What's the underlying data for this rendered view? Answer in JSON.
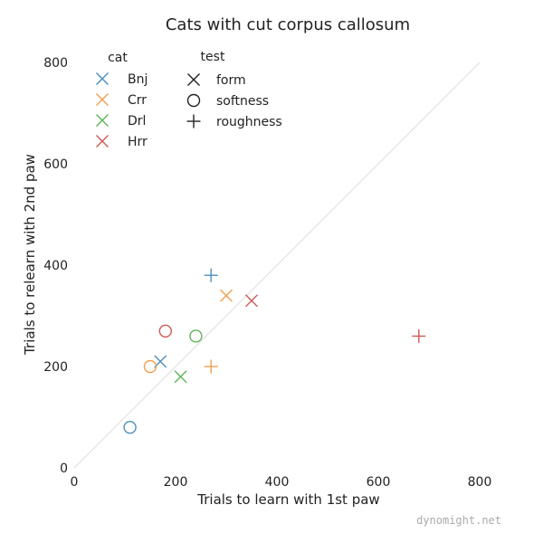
{
  "chart_data": {
    "type": "scatter",
    "title": "Cats with cut corpus callosum",
    "xlabel": "Trials to learn with 1st paw",
    "ylabel": "Trials to relearn with 2nd paw",
    "xlim": [
      0,
      800
    ],
    "ylim": [
      0,
      800
    ],
    "xticks": [
      "0",
      "200",
      "400",
      "600",
      "800"
    ],
    "yticks": [
      "0",
      "200",
      "400",
      "600",
      "800"
    ],
    "reference_line": "diagonal y = x",
    "grid": false,
    "legend_placement": "top-left",
    "cat_legend_title": "cat",
    "test_legend_title": "test",
    "cats": [
      {
        "name": "Bnj",
        "color": "#4c8fbd"
      },
      {
        "name": "Crr",
        "color": "#f0a050"
      },
      {
        "name": "Drl",
        "color": "#60b55a"
      },
      {
        "name": "Hrr",
        "color": "#d05a55"
      }
    ],
    "tests": [
      {
        "name": "form",
        "marker": "x"
      },
      {
        "name": "softness",
        "marker": "circle"
      },
      {
        "name": "roughness",
        "marker": "plus"
      }
    ],
    "points": [
      {
        "cat": "Bnj",
        "test": "form",
        "x": 170,
        "y": 210
      },
      {
        "cat": "Bnj",
        "test": "softness",
        "x": 110,
        "y": 80
      },
      {
        "cat": "Bnj",
        "test": "roughness",
        "x": 270,
        "y": 380
      },
      {
        "cat": "Crr",
        "test": "form",
        "x": 300,
        "y": 340
      },
      {
        "cat": "Crr",
        "test": "softness",
        "x": 150,
        "y": 200
      },
      {
        "cat": "Crr",
        "test": "roughness",
        "x": 270,
        "y": 200
      },
      {
        "cat": "Drl",
        "test": "form",
        "x": 210,
        "y": 180
      },
      {
        "cat": "Drl",
        "test": "softness",
        "x": 240,
        "y": 260
      },
      {
        "cat": "Hrr",
        "test": "form",
        "x": 350,
        "y": 330
      },
      {
        "cat": "Hrr",
        "test": "softness",
        "x": 180,
        "y": 270
      },
      {
        "cat": "Hrr",
        "test": "roughness",
        "x": 680,
        "y": 260
      }
    ]
  },
  "credit": "dynomight.net"
}
